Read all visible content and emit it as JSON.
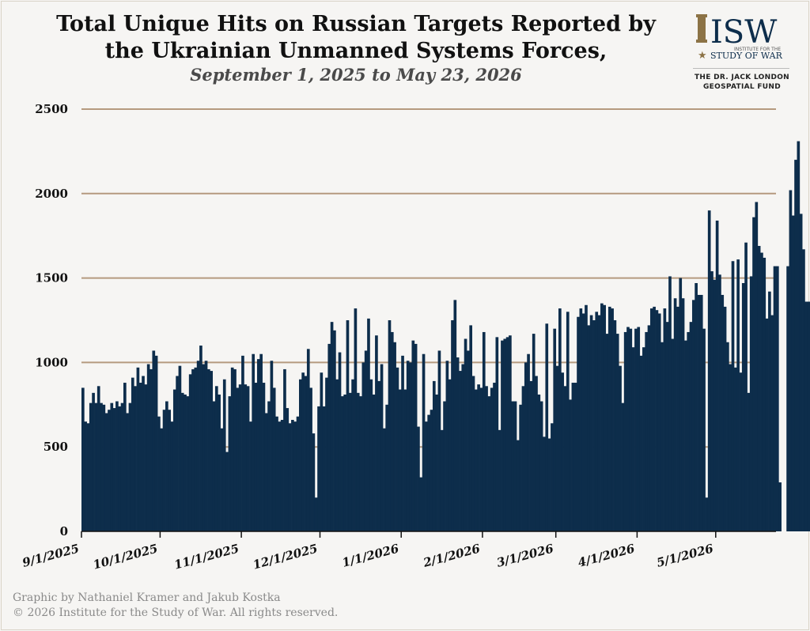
{
  "header": {
    "title_line1": "Total Unique Hits on Russian Targets Reported by",
    "title_line2": "the Ukrainian Unmanned Systems Forces,",
    "subtitle": "September 1, 2025 to May 23, 2026"
  },
  "logo": {
    "letters": "ISW",
    "tagline_small": "INSTITUTE FOR THE",
    "tagline": "STUDY OF WAR",
    "fund_line1": "THE DR. JACK LONDON",
    "fund_line2": "GEOSPATIAL FUND"
  },
  "footer": {
    "credit_line1": "Graphic by Nathaniel Kramer and Jakub Kostka",
    "credit_line2": "© 2026 Institute for the Study of War. All rights reserved."
  },
  "colors": {
    "bar": "#0d2d4b",
    "gridline": "#b59a7f",
    "accent_gold": "#8c7346"
  },
  "chart_data": {
    "type": "bar",
    "title": "Total Unique Hits on Russian Targets Reported by the Ukrainian Unmanned Systems Forces,",
    "subtitle": "September 1, 2025 to May 23, 2026",
    "x_start": "2025-09-01",
    "x_end": "2026-05-23",
    "ylim": [
      0,
      2500
    ],
    "yticks": [
      0,
      500,
      1000,
      1500,
      2000,
      2500
    ],
    "xticks": [
      {
        "label": "9/1/2025",
        "date": "2025-09-01"
      },
      {
        "label": "10/1/2025",
        "date": "2025-10-01"
      },
      {
        "label": "11/1/2025",
        "date": "2025-11-01"
      },
      {
        "label": "12/1/2025",
        "date": "2025-12-01"
      },
      {
        "label": "1/1/2026",
        "date": "2026-01-01"
      },
      {
        "label": "2/1/2026",
        "date": "2026-02-01"
      },
      {
        "label": "3/1/2026",
        "date": "2026-03-01"
      },
      {
        "label": "4/1/2026",
        "date": "2026-04-01"
      },
      {
        "label": "5/1/2026",
        "date": "2026-05-01"
      }
    ],
    "grid": true,
    "values": [
      850,
      650,
      640,
      760,
      820,
      760,
      860,
      760,
      750,
      700,
      720,
      760,
      730,
      770,
      740,
      760,
      880,
      700,
      760,
      910,
      860,
      970,
      880,
      920,
      870,
      990,
      960,
      1070,
      1040,
      680,
      610,
      720,
      770,
      720,
      650,
      840,
      920,
      980,
      820,
      810,
      800,
      930,
      960,
      970,
      1010,
      1100,
      990,
      1010,
      960,
      950,
      770,
      860,
      810,
      610,
      900,
      470,
      800,
      970,
      960,
      850,
      870,
      1040,
      870,
      860,
      650,
      1050,
      880,
      1020,
      1050,
      880,
      700,
      770,
      1010,
      850,
      680,
      650,
      660,
      960,
      730,
      640,
      660,
      650,
      680,
      900,
      940,
      920,
      1080,
      850,
      580,
      200,
      740,
      940,
      740,
      910,
      1110,
      1240,
      1190,
      900,
      1060,
      800,
      810,
      1250,
      820,
      900,
      1320,
      820,
      800,
      1000,
      1070,
      1260,
      900,
      810,
      1160,
      890,
      990,
      610,
      750,
      1250,
      1180,
      1120,
      970,
      840,
      1040,
      840,
      1010,
      1000,
      1130,
      1110,
      620,
      320,
      1050,
      650,
      690,
      720,
      890,
      810,
      1070,
      600,
      770,
      1010,
      900,
      1250,
      1370,
      1030,
      950,
      990,
      1140,
      1070,
      1220,
      920,
      840,
      870,
      850,
      1180,
      860,
      800,
      850,
      880,
      1150,
      600,
      1130,
      1140,
      1150,
      1160,
      770,
      770,
      540,
      750,
      860,
      1000,
      1050,
      890,
      1170,
      920,
      810,
      770,
      560,
      1230,
      550,
      640,
      1200,
      980,
      1320,
      940,
      860,
      1300,
      780,
      880,
      880,
      1270,
      1320,
      1290,
      1340,
      1220,
      1280,
      1250,
      1300,
      1280,
      1350,
      1340,
      1170,
      1330,
      1320,
      1250,
      1170,
      980,
      760,
      1180,
      1210,
      1200,
      1090,
      1200,
      1210,
      1040,
      1090,
      1180,
      1220,
      1320,
      1330,
      1310,
      1290,
      1120,
      1320,
      1240,
      1510,
      1140,
      1380,
      1330,
      1500,
      1380,
      1130,
      1180,
      1240,
      1370,
      1470,
      1400,
      1400,
      1200,
      200,
      1900,
      1540,
      1490,
      1840,
      1520,
      1400,
      1330,
      1120,
      990,
      1600,
      970,
      1610,
      940,
      1470,
      1710,
      820,
      1510,
      1860,
      1950,
      1690,
      1650,
      1620,
      1260,
      1420,
      1280,
      1570,
      1570,
      290,
      0,
      0,
      1570,
      2020,
      1870,
      2200,
      2310,
      1880,
      1670,
      1360,
      1360,
      1230,
      1440
    ]
  }
}
